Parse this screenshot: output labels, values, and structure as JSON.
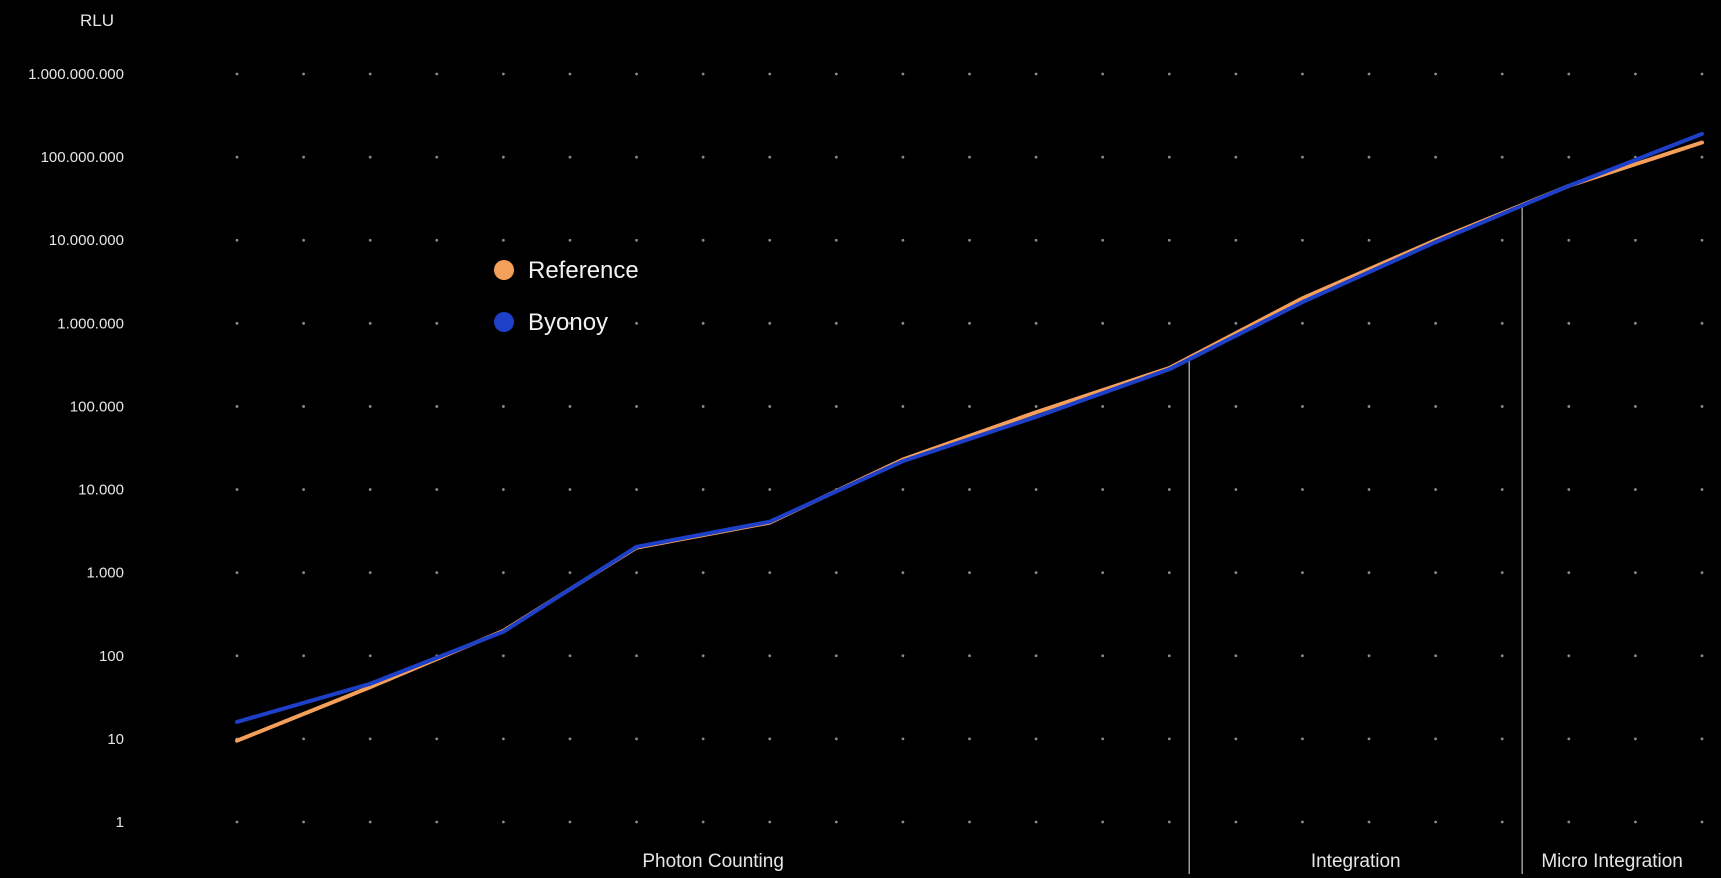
{
  "chart_data": {
    "type": "line",
    "ylabel": "RLU",
    "yscale": "log",
    "ylim": [
      1,
      1000000000
    ],
    "y_ticks": [
      {
        "value": 1,
        "label": "1"
      },
      {
        "value": 10,
        "label": "10"
      },
      {
        "value": 100,
        "label": "100"
      },
      {
        "value": 1000,
        "label": "1.000"
      },
      {
        "value": 10000,
        "label": "10.000"
      },
      {
        "value": 100000,
        "label": "100.000"
      },
      {
        "value": 1000000,
        "label": "1.000.000"
      },
      {
        "value": 10000000,
        "label": "10.000.000"
      },
      {
        "value": 100000000,
        "label": "100.000.000"
      },
      {
        "value": 1000000000,
        "label": "1.000.000.000"
      }
    ],
    "x": [
      1,
      3,
      5,
      7,
      9,
      11,
      13,
      15,
      17,
      19,
      21,
      23
    ],
    "xlim": [
      1,
      23
    ],
    "x_grid_step": 1,
    "grid": "dotted",
    "series": [
      {
        "name": "Reference",
        "color": "#f5a05a",
        "values": [
          9.5,
          42,
          200,
          2000,
          4000,
          23000,
          85000,
          290000,
          2000000,
          10000000,
          45000000,
          150000000
        ]
      },
      {
        "name": "Byonoy",
        "color": "#1e3fc8",
        "values": [
          16,
          46,
          195,
          2050,
          4100,
          22000,
          75000,
          280000,
          1800000,
          9500000,
          45000000,
          190000000
        ]
      }
    ],
    "regions": [
      {
        "label": "Photon Counting",
        "from": 1,
        "to": 15.3
      },
      {
        "label": "Integration",
        "from": 15.3,
        "to": 20.3
      },
      {
        "label": "Micro Integration",
        "from": 20.3,
        "to": 23
      }
    ],
    "legend_position": "upper-left"
  }
}
